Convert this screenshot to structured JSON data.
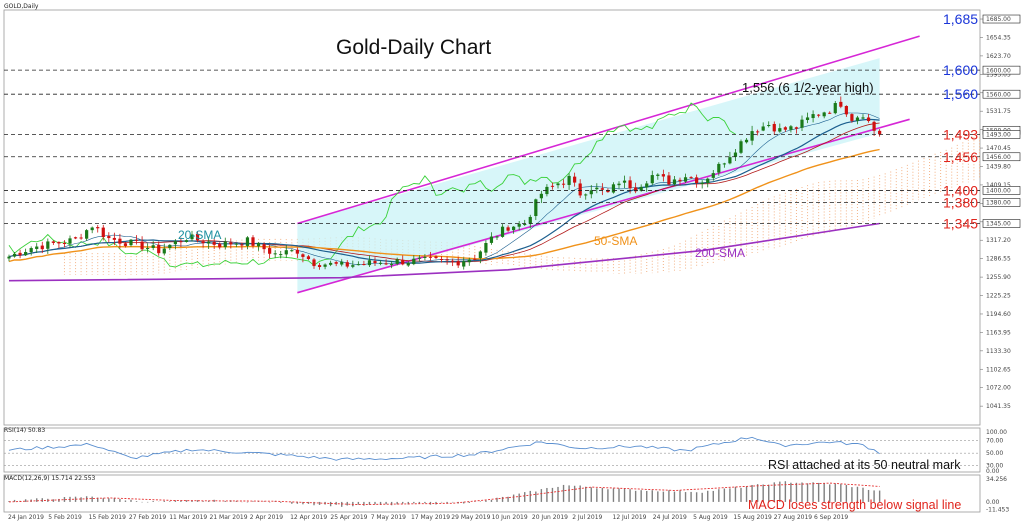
{
  "symbol_label": "GOLD,Daily",
  "colors": {
    "bull": "#1a7a1a",
    "bear": "#d01010",
    "sma20": "#1c5f8f",
    "sma50": "#f0921a",
    "sma200": "#9b30c0",
    "channel": "#d626d6",
    "kijun": "#b21a1a",
    "tenkan": "#1c5f8f",
    "chikou": "#3bd23b",
    "cloud": "#f3b488",
    "channel_fill": "#c9f3f7",
    "level_blue": "#1a35d8",
    "level_red": "#e0241c",
    "rsi": "#5a8fd0",
    "macd_hist": "#7f7f7f",
    "macd_signal": "#e53030"
  },
  "chart_data": [
    {
      "type": "candlestick",
      "title": "Gold-Daily Chart",
      "ylim": [
        1010,
        1700
      ],
      "y_ticks": [
        "1685.00",
        "1654.35",
        "1623.70",
        "1593.05",
        "1562.40",
        "1531.75",
        "1501.10",
        "1470.45",
        "1439.80",
        "1409.15",
        "1378.50",
        "1347.85",
        "1317.20",
        "1286.55",
        "1255.90",
        "1225.25",
        "1194.60",
        "1163.95",
        "1133.30",
        "1102.65",
        "1072.00",
        "1041.35"
      ],
      "x_ticks": [
        "24 Jan 2019",
        "5 Feb 2019",
        "15 Feb 2019",
        "27 Feb 2019",
        "11 Mar 2019",
        "21 Mar 2019",
        "2 Apr 2019",
        "12 Apr 2019",
        "25 Apr 2019",
        "7 May 2019",
        "17 May 2019",
        "29 May 2019",
        "10 Jun 2019",
        "20 Jun 2019",
        "2 Jul 2019",
        "12 Jul 2019",
        "24 Jul 2019",
        "5 Aug 2019",
        "15 Aug 2019",
        "27 Aug 2019",
        "6 Sep 2019"
      ],
      "price_tags": [
        "1685.00",
        "1600.00",
        "1560.00",
        "1500.00",
        "1493.00",
        "1456.00",
        "1400.00",
        "1380.00",
        "1345.00"
      ],
      "levels": [
        {
          "label": "1,685",
          "value": 1685,
          "color": "blue",
          "line": false
        },
        {
          "label": "1,600",
          "value": 1600,
          "color": "blue",
          "line": true
        },
        {
          "label": "1,560",
          "value": 1560,
          "color": "blue",
          "line": true
        },
        {
          "label": "1,493",
          "value": 1493,
          "color": "red",
          "line": true
        },
        {
          "label": "1,456",
          "value": 1456,
          "color": "red",
          "line": true
        },
        {
          "label": "1,400",
          "value": 1400,
          "color": "red",
          "line": true
        },
        {
          "label": "1,380",
          "value": 1380,
          "color": "red",
          "line": true
        },
        {
          "label": "1,345",
          "value": 1345,
          "color": "red",
          "line": true
        }
      ],
      "annotations": {
        "high": "1,556 (6 1/2-year high)",
        "sma20": "20-SMA",
        "sma50": "50-SMA",
        "sma200": "200-SMA"
      },
      "anchors": [
        {
          "d": 0,
          "c": 1290
        },
        {
          "d": 4,
          "c": 1305
        },
        {
          "d": 12,
          "c": 1318
        },
        {
          "d": 15,
          "c": 1342
        },
        {
          "d": 18,
          "c": 1320
        },
        {
          "d": 23,
          "c": 1310
        },
        {
          "d": 27,
          "c": 1300
        },
        {
          "d": 32,
          "c": 1322
        },
        {
          "d": 38,
          "c": 1310
        },
        {
          "d": 43,
          "c": 1316
        },
        {
          "d": 48,
          "c": 1294
        },
        {
          "d": 52,
          "c": 1300
        },
        {
          "d": 55,
          "c": 1280
        },
        {
          "d": 60,
          "c": 1275
        },
        {
          "d": 66,
          "c": 1280
        },
        {
          "d": 70,
          "c": 1282
        },
        {
          "d": 74,
          "c": 1283
        },
        {
          "d": 81,
          "c": 1282
        },
        {
          "d": 84,
          "c": 1290
        },
        {
          "d": 87,
          "c": 1320
        },
        {
          "d": 90,
          "c": 1340
        },
        {
          "d": 93,
          "c": 1345
        },
        {
          "d": 96,
          "c": 1395
        },
        {
          "d": 99,
          "c": 1412
        },
        {
          "d": 101,
          "c": 1420
        },
        {
          "d": 103,
          "c": 1395
        },
        {
          "d": 105,
          "c": 1405
        },
        {
          "d": 108,
          "c": 1395
        },
        {
          "d": 110,
          "c": 1415
        },
        {
          "d": 113,
          "c": 1405
        },
        {
          "d": 116,
          "c": 1425
        },
        {
          "d": 119,
          "c": 1415
        },
        {
          "d": 122,
          "c": 1425
        },
        {
          "d": 125,
          "c": 1415
        },
        {
          "d": 128,
          "c": 1440
        },
        {
          "d": 131,
          "c": 1470
        },
        {
          "d": 134,
          "c": 1500
        },
        {
          "d": 137,
          "c": 1510
        },
        {
          "d": 139,
          "c": 1500
        },
        {
          "d": 142,
          "c": 1505
        },
        {
          "d": 145,
          "c": 1525
        },
        {
          "d": 148,
          "c": 1535
        },
        {
          "d": 150,
          "c": 1545
        },
        {
          "d": 152,
          "c": 1520
        },
        {
          "d": 154,
          "c": 1528
        },
        {
          "d": 156,
          "c": 1500
        },
        {
          "d": 157,
          "c": 1495
        }
      ],
      "sma200": [
        [
          0,
          1250
        ],
        [
          60,
          1255
        ],
        [
          90,
          1268
        ],
        [
          125,
          1300
        ],
        [
          157,
          1345
        ]
      ],
      "channel_upper": [
        [
          52,
          1345
        ],
        [
          157,
          1620
        ]
      ],
      "channel_lower": [
        [
          52,
          1230
        ],
        [
          157,
          1495
        ]
      ]
    },
    {
      "type": "line",
      "title": "RSI(14) 50.83",
      "ylim": [
        20,
        90
      ],
      "y_ticks": [
        "100.00",
        "70.00",
        "50.00",
        "30.00",
        "0.00"
      ],
      "annotation": "RSI attached at its 50 neutral mark",
      "anchors": [
        {
          "d": 0,
          "v": 55
        },
        {
          "d": 15,
          "v": 64
        },
        {
          "d": 22,
          "v": 42
        },
        {
          "d": 33,
          "v": 56
        },
        {
          "d": 48,
          "v": 48
        },
        {
          "d": 60,
          "v": 40
        },
        {
          "d": 72,
          "v": 42
        },
        {
          "d": 84,
          "v": 48
        },
        {
          "d": 96,
          "v": 68
        },
        {
          "d": 103,
          "v": 58
        },
        {
          "d": 113,
          "v": 61
        },
        {
          "d": 122,
          "v": 54
        },
        {
          "d": 134,
          "v": 76
        },
        {
          "d": 139,
          "v": 62
        },
        {
          "d": 148,
          "v": 68
        },
        {
          "d": 154,
          "v": 63
        },
        {
          "d": 157,
          "v": 51
        }
      ]
    },
    {
      "type": "bar",
      "title": "MACD(12,26,9) 15.714 22.553",
      "ylim": [
        -15,
        40
      ],
      "y_ticks": [
        "34.256",
        "0.00",
        "-11.453"
      ],
      "annotation": "MACD loses strength below signal line",
      "hist_anchors": [
        {
          "d": 0,
          "v": 2
        },
        {
          "d": 15,
          "v": 8
        },
        {
          "d": 25,
          "v": 0
        },
        {
          "d": 35,
          "v": 2
        },
        {
          "d": 48,
          "v": 0
        },
        {
          "d": 60,
          "v": -6
        },
        {
          "d": 75,
          "v": -3
        },
        {
          "d": 85,
          "v": 0
        },
        {
          "d": 100,
          "v": 25
        },
        {
          "d": 112,
          "v": 18
        },
        {
          "d": 125,
          "v": 15
        },
        {
          "d": 140,
          "v": 30
        },
        {
          "d": 150,
          "v": 26
        },
        {
          "d": 157,
          "v": 16
        }
      ],
      "signal_anchors": [
        {
          "d": 0,
          "v": 0
        },
        {
          "d": 18,
          "v": 6
        },
        {
          "d": 30,
          "v": 2
        },
        {
          "d": 48,
          "v": 1
        },
        {
          "d": 63,
          "v": -4
        },
        {
          "d": 80,
          "v": -2
        },
        {
          "d": 92,
          "v": 8
        },
        {
          "d": 105,
          "v": 22
        },
        {
          "d": 120,
          "v": 17
        },
        {
          "d": 135,
          "v": 24
        },
        {
          "d": 148,
          "v": 28
        },
        {
          "d": 157,
          "v": 23
        }
      ]
    }
  ]
}
